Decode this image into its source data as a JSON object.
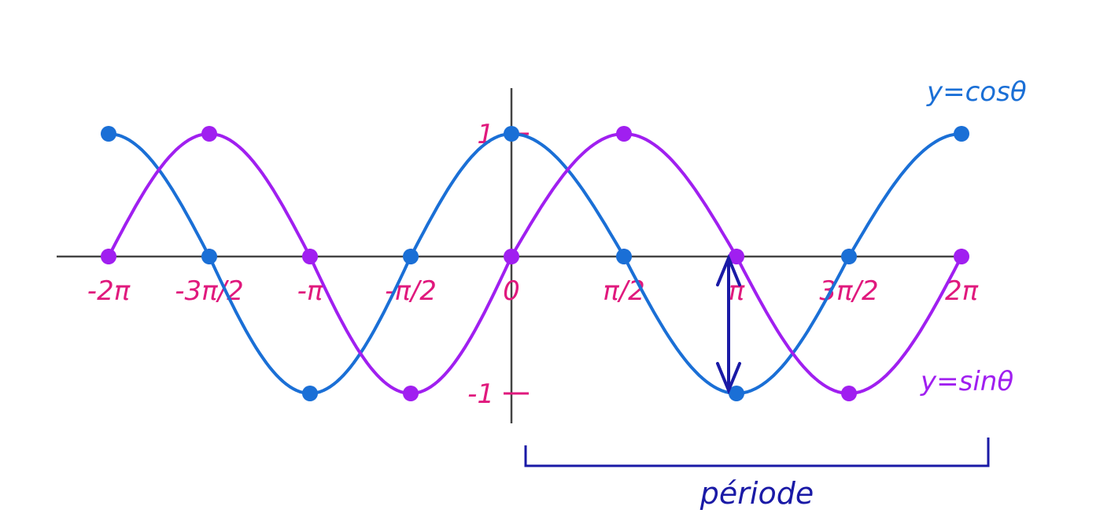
{
  "chart_data": {
    "type": "line",
    "x_domain": [
      "-2π",
      "2π"
    ],
    "ylim": [
      -1,
      1
    ],
    "x_ticks": [
      {
        "x": -6.2832,
        "label": "-2π"
      },
      {
        "x": -4.7124,
        "label": "-3π/2"
      },
      {
        "x": -3.1416,
        "label": "-π"
      },
      {
        "x": -1.5708,
        "label": "-π/2"
      },
      {
        "x": 0,
        "label": "0"
      },
      {
        "x": 1.5708,
        "label": "π/2"
      },
      {
        "x": 3.1416,
        "label": "π"
      },
      {
        "x": 4.7124,
        "label": "3π/2"
      },
      {
        "x": 6.2832,
        "label": "2π"
      }
    ],
    "y_ticks": [
      {
        "y": 1,
        "label": "1"
      },
      {
        "y": -1,
        "label": "-1"
      }
    ],
    "series": [
      {
        "name": "y=cosθ",
        "color": "#1a6fd6",
        "points": [
          {
            "x": -6.2832,
            "y": 1
          },
          {
            "x": -4.7124,
            "y": 0
          },
          {
            "x": -3.1416,
            "y": -1
          },
          {
            "x": -1.5708,
            "y": 0
          },
          {
            "x": 0,
            "y": 1
          },
          {
            "x": 1.5708,
            "y": 0
          },
          {
            "x": 3.1416,
            "y": -1
          },
          {
            "x": 4.7124,
            "y": 0
          },
          {
            "x": 6.2832,
            "y": 1
          }
        ]
      },
      {
        "name": "y=sinθ",
        "color": "#a01ff0",
        "points": [
          {
            "x": -6.2832,
            "y": 0
          },
          {
            "x": -4.7124,
            "y": 1
          },
          {
            "x": -3.1416,
            "y": 0
          },
          {
            "x": -1.5708,
            "y": -1
          },
          {
            "x": 0,
            "y": 0
          },
          {
            "x": 1.5708,
            "y": 1
          },
          {
            "x": 3.1416,
            "y": 0
          },
          {
            "x": 4.7124,
            "y": -1
          },
          {
            "x": 6.2832,
            "y": 0
          }
        ]
      }
    ],
    "annotations": {
      "period_label": "période",
      "period_from": 0,
      "period_to": 6.2832,
      "amplitude_arrow_x": 3.1416
    },
    "colors": {
      "axis": "#444444",
      "ticks": "#e0197d",
      "annotation": "#1a1aa6"
    }
  }
}
